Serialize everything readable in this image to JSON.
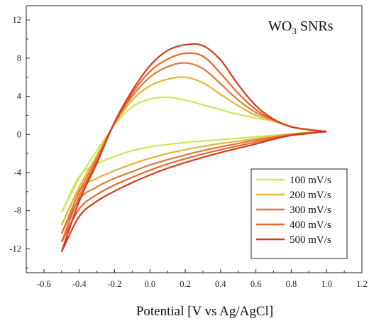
{
  "chart_data": {
    "type": "line",
    "title": "",
    "annotation": {
      "main": "WO",
      "sub": "3",
      "rest": " SNRs"
    },
    "xlabel": "Potential [V vs Ag/AgCl]",
    "ylabel": "",
    "xlim": [
      -0.7,
      1.2
    ],
    "ylim": [
      -14.5,
      13.5
    ],
    "x_ticks": [
      -0.6,
      -0.4,
      -0.2,
      0.0,
      0.2,
      0.4,
      0.6,
      0.8,
      1.0,
      1.2
    ],
    "x_tick_labels": [
      "-0.6",
      "-0.4",
      "-0.2",
      "0.0",
      "0.2",
      "0.4",
      "0.6",
      "0.8",
      "1.0",
      "1.2"
    ],
    "y_ticks": [
      -12,
      -8,
      -4,
      0,
      4,
      8,
      12
    ],
    "y_tick_labels": [
      "-12",
      "-8",
      "-4",
      "0",
      "4",
      "8",
      "12"
    ],
    "grid": false,
    "legend_position": "bottom-right",
    "series": [
      {
        "name": "100 mV/s",
        "color": "#cfe561",
        "anodic": {
          "x": [
            -0.5,
            -0.4,
            -0.3,
            -0.2,
            -0.1,
            0.0,
            0.1,
            0.2,
            0.3,
            0.4,
            0.5,
            0.6,
            0.7,
            0.8,
            0.9,
            1.0
          ],
          "y": [
            -8.2,
            -4.6,
            -1.7,
            1.0,
            2.9,
            3.7,
            3.9,
            3.6,
            3.1,
            2.6,
            2.1,
            1.7,
            1.4,
            0.8,
            0.5,
            0.3
          ]
        },
        "cathodic": {
          "x": [
            1.0,
            0.9,
            0.8,
            0.7,
            0.6,
            0.5,
            0.4,
            0.3,
            0.2,
            0.1,
            0.0,
            -0.1,
            -0.2,
            -0.3,
            -0.4,
            -0.5
          ],
          "y": [
            0.3,
            0.2,
            0.05,
            -0.1,
            -0.25,
            -0.4,
            -0.55,
            -0.7,
            -0.85,
            -1.05,
            -1.3,
            -1.7,
            -2.3,
            -3.1,
            -4.4,
            -8.2
          ]
        }
      },
      {
        "name": "200 mV/s",
        "color": "#e8b435",
        "anodic": {
          "x": [
            -0.5,
            -0.4,
            -0.3,
            -0.2,
            -0.1,
            0.0,
            0.1,
            0.2,
            0.3,
            0.4,
            0.5,
            0.6,
            0.7,
            0.8,
            0.9,
            1.0
          ],
          "y": [
            -9.5,
            -5.5,
            -2.2,
            1.1,
            3.6,
            5.1,
            5.8,
            6.0,
            5.4,
            4.2,
            3.0,
            2.0,
            1.4,
            0.8,
            0.5,
            0.3
          ]
        },
        "cathodic": {
          "x": [
            1.0,
            0.9,
            0.8,
            0.7,
            0.6,
            0.5,
            0.4,
            0.3,
            0.2,
            0.1,
            0.0,
            -0.1,
            -0.2,
            -0.3,
            -0.4,
            -0.5
          ],
          "y": [
            0.3,
            0.2,
            0.05,
            -0.2,
            -0.45,
            -0.7,
            -0.95,
            -1.25,
            -1.6,
            -2.0,
            -2.5,
            -3.1,
            -3.8,
            -4.6,
            -5.8,
            -9.5
          ]
        }
      },
      {
        "name": "300 mV/s",
        "color": "#d97b38",
        "anodic": {
          "x": [
            -0.5,
            -0.4,
            -0.3,
            -0.2,
            -0.1,
            0.0,
            0.1,
            0.2,
            0.3,
            0.4,
            0.5,
            0.6,
            0.7,
            0.8,
            0.9,
            1.0
          ],
          "y": [
            -10.4,
            -6.0,
            -2.5,
            1.2,
            4.0,
            6.0,
            7.1,
            7.5,
            6.9,
            5.3,
            3.6,
            2.3,
            1.5,
            0.8,
            0.5,
            0.3
          ]
        },
        "cathodic": {
          "x": [
            1.0,
            0.9,
            0.8,
            0.7,
            0.6,
            0.5,
            0.4,
            0.3,
            0.2,
            0.1,
            0.0,
            -0.1,
            -0.2,
            -0.3,
            -0.4,
            -0.5
          ],
          "y": [
            0.3,
            0.2,
            0.0,
            -0.3,
            -0.6,
            -0.95,
            -1.3,
            -1.7,
            -2.15,
            -2.65,
            -3.2,
            -3.9,
            -4.6,
            -5.5,
            -6.8,
            -10.4
          ]
        }
      },
      {
        "name": "400 mV/s",
        "color": "#e9652a",
        "anodic": {
          "x": [
            -0.5,
            -0.4,
            -0.3,
            -0.2,
            -0.1,
            0.0,
            0.1,
            0.2,
            0.3,
            0.4,
            0.5,
            0.6,
            0.7,
            0.8,
            0.9,
            1.0
          ],
          "y": [
            -11.3,
            -6.5,
            -2.8,
            1.2,
            4.3,
            6.6,
            7.9,
            8.5,
            8.2,
            6.4,
            4.3,
            2.6,
            1.5,
            0.8,
            0.5,
            0.3
          ]
        },
        "cathodic": {
          "x": [
            1.0,
            0.9,
            0.8,
            0.7,
            0.6,
            0.5,
            0.4,
            0.3,
            0.2,
            0.1,
            0.0,
            -0.1,
            -0.2,
            -0.3,
            -0.4,
            -0.5
          ],
          "y": [
            0.3,
            0.15,
            -0.05,
            -0.4,
            -0.8,
            -1.2,
            -1.6,
            -2.05,
            -2.55,
            -3.1,
            -3.75,
            -4.5,
            -5.3,
            -6.3,
            -7.8,
            -11.3
          ]
        }
      },
      {
        "name": "500 mV/s",
        "color": "#d33c1e",
        "anodic": {
          "x": [
            -0.5,
            -0.4,
            -0.3,
            -0.2,
            -0.1,
            0.0,
            0.1,
            0.2,
            0.3,
            0.4,
            0.5,
            0.6,
            0.7,
            0.8,
            0.9,
            1.0
          ],
          "y": [
            -12.3,
            -7.0,
            -3.0,
            1.3,
            4.6,
            7.2,
            8.8,
            9.4,
            9.3,
            7.8,
            5.2,
            3.0,
            1.6,
            0.8,
            0.5,
            0.3
          ]
        },
        "cathodic": {
          "x": [
            1.0,
            0.9,
            0.8,
            0.7,
            0.6,
            0.5,
            0.4,
            0.3,
            0.2,
            0.1,
            0.0,
            -0.1,
            -0.2,
            -0.3,
            -0.4,
            -0.5
          ],
          "y": [
            0.3,
            0.1,
            -0.1,
            -0.5,
            -1.0,
            -1.45,
            -1.9,
            -2.4,
            -2.95,
            -3.55,
            -4.25,
            -5.05,
            -5.95,
            -7.0,
            -8.6,
            -12.3
          ]
        }
      }
    ]
  }
}
